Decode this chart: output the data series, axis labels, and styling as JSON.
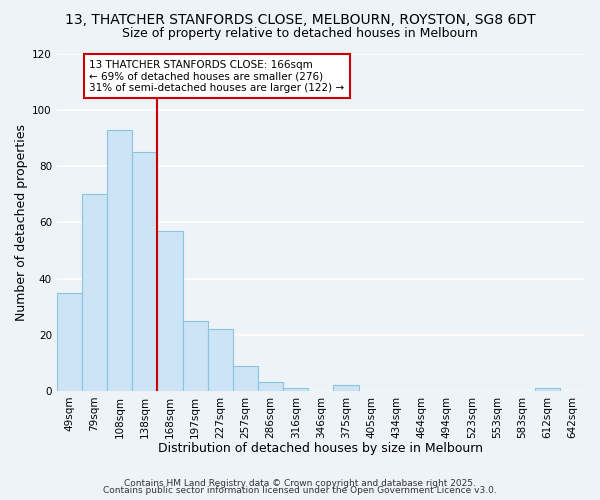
{
  "title1": "13, THATCHER STANFORDS CLOSE, MELBOURN, ROYSTON, SG8 6DT",
  "title2": "Size of property relative to detached houses in Melbourn",
  "xlabel": "Distribution of detached houses by size in Melbourn",
  "ylabel": "Number of detached properties",
  "categories": [
    "49sqm",
    "79sqm",
    "108sqm",
    "138sqm",
    "168sqm",
    "197sqm",
    "227sqm",
    "257sqm",
    "286sqm",
    "316sqm",
    "346sqm",
    "375sqm",
    "405sqm",
    "434sqm",
    "464sqm",
    "494sqm",
    "523sqm",
    "553sqm",
    "583sqm",
    "612sqm",
    "642sqm"
  ],
  "values": [
    35,
    70,
    93,
    85,
    57,
    25,
    22,
    9,
    3,
    1,
    0,
    2,
    0,
    0,
    0,
    0,
    0,
    0,
    0,
    1,
    0
  ],
  "bar_color": "#cce4f5",
  "bar_edge_color": "#89c4e1",
  "vline_color": "#cc0000",
  "vline_x": 3.5,
  "annotation_text": "13 THATCHER STANFORDS CLOSE: 166sqm\n← 69% of detached houses are smaller (276)\n31% of semi-detached houses are larger (122) →",
  "annotation_box_color": "#ffffff",
  "annotation_box_edge": "#cc0000",
  "ylim": [
    0,
    120
  ],
  "yticks": [
    0,
    20,
    40,
    60,
    80,
    100,
    120
  ],
  "footer1": "Contains HM Land Registry data © Crown copyright and database right 2025.",
  "footer2": "Contains public sector information licensed under the Open Government Licence v3.0.",
  "bg_color": "#eef3f8",
  "plot_bg_color": "#eef3f8",
  "grid_color": "#ffffff",
  "title_fontsize": 10,
  "subtitle_fontsize": 9,
  "axis_label_fontsize": 9,
  "tick_fontsize": 7.5,
  "footer_fontsize": 6.5,
  "annot_fontsize": 7.5
}
